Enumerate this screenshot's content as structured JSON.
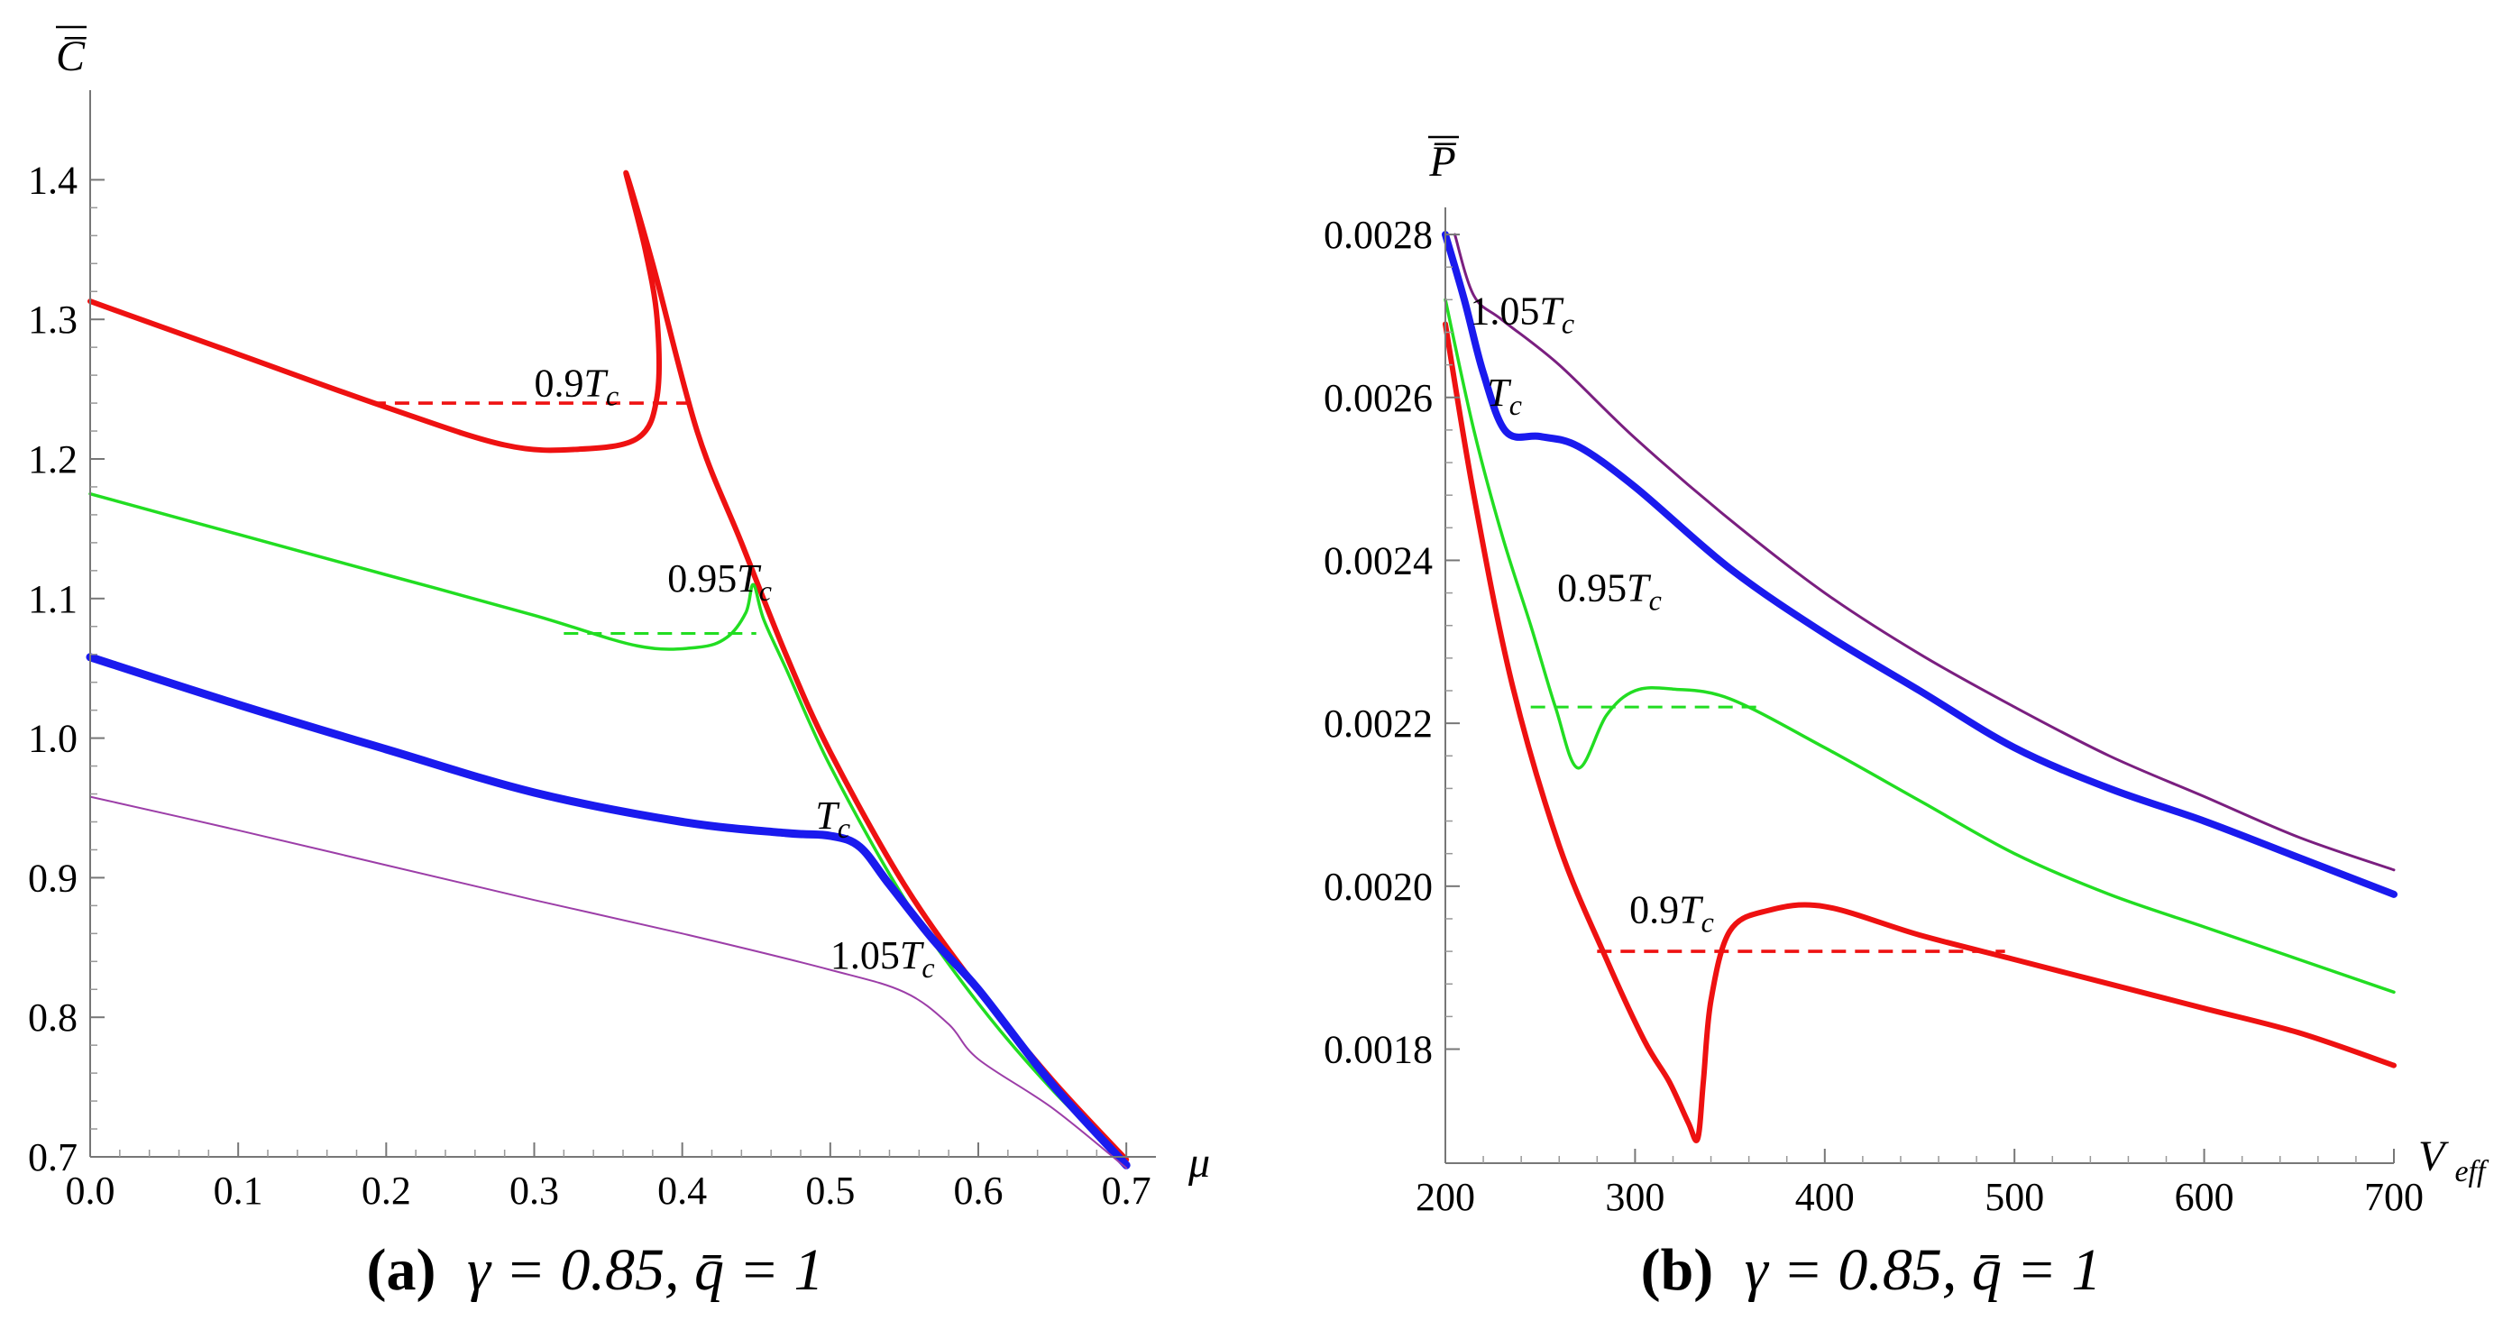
{
  "chart_data": [
    {
      "type": "line",
      "panel": "(a)",
      "caption": {
        "tag": "(a)",
        "text": "γ = 0.85, q̄ = 1"
      },
      "xlabel": "μ",
      "ylabel": "C̅",
      "xlim": [
        0.0,
        0.72
      ],
      "ylim": [
        0.7,
        1.45
      ],
      "xticks": [
        0.0,
        0.1,
        0.2,
        0.3,
        0.4,
        0.5,
        0.6,
        0.7
      ],
      "xtick_labels": [
        "0.0",
        "0.1",
        "0.2",
        "0.3",
        "0.4",
        "0.5",
        "0.6",
        "0.7"
      ],
      "yticks": [
        0.7,
        0.8,
        0.9,
        1.0,
        1.1,
        1.2,
        1.3,
        1.4
      ],
      "ytick_labels": [
        "0.7",
        "0.8",
        "0.9",
        "1.0",
        "1.1",
        "1.2",
        "1.3",
        "1.4"
      ],
      "series": [
        {
          "name": "0.9Tc",
          "label_main": "0.9",
          "label_sub": "c",
          "label_at": [
            0.3,
            1.245
          ],
          "color": "#ee1111",
          "width": 6,
          "points": [
            [
              0,
              1.313
            ],
            [
              0.1,
              1.275
            ],
            [
              0.2,
              1.237
            ],
            [
              0.28,
              1.21
            ],
            [
              0.33,
              1.207
            ],
            [
              0.37,
              1.215
            ],
            [
              0.383,
              1.245
            ],
            [
              0.383,
              1.3
            ],
            [
              0.375,
              1.35
            ],
            [
              0.362,
              1.405
            ],
            [
              0.38,
              1.34
            ],
            [
              0.41,
              1.22
            ],
            [
              0.44,
              1.14
            ],
            [
              0.47,
              1.06
            ],
            [
              0.5,
              0.99
            ],
            [
              0.55,
              0.895
            ],
            [
              0.6,
              0.82
            ],
            [
              0.65,
              0.755
            ],
            [
              0.7,
              0.698
            ]
          ],
          "maxwell": {
            "x": [
              0.19,
              0.406
            ],
            "y": 1.24
          }
        },
        {
          "name": "0.95Tc",
          "label_main": "0.95",
          "label_sub": "c",
          "label_at": [
            0.39,
            1.105
          ],
          "color": "#22dd22",
          "width": 3.5,
          "points": [
            [
              0,
              1.175
            ],
            [
              0.1,
              1.146
            ],
            [
              0.2,
              1.117
            ],
            [
              0.3,
              1.088
            ],
            [
              0.37,
              1.066
            ],
            [
              0.41,
              1.065
            ],
            [
              0.43,
              1.072
            ],
            [
              0.443,
              1.09
            ],
            [
              0.448,
              1.11
            ],
            [
              0.455,
              1.085
            ],
            [
              0.47,
              1.05
            ],
            [
              0.5,
              0.98
            ],
            [
              0.55,
              0.885
            ],
            [
              0.6,
              0.81
            ],
            [
              0.65,
              0.748
            ],
            [
              0.7,
              0.696
            ]
          ],
          "maxwell": {
            "x": [
              0.32,
              0.45
            ],
            "y": 1.075
          }
        },
        {
          "name": "Tc",
          "label_main": "",
          "label_sub": "c",
          "label_at": [
            0.49,
            0.935
          ],
          "color": "#1a1aee",
          "width": 9,
          "points": [
            [
              0,
              1.058
            ],
            [
              0.1,
              1.024
            ],
            [
              0.2,
              0.992
            ],
            [
              0.3,
              0.961
            ],
            [
              0.4,
              0.94
            ],
            [
              0.47,
              0.932
            ],
            [
              0.5,
              0.93
            ],
            [
              0.52,
              0.922
            ],
            [
              0.54,
              0.895
            ],
            [
              0.57,
              0.855
            ],
            [
              0.6,
              0.82
            ],
            [
              0.65,
              0.752
            ],
            [
              0.7,
              0.694
            ]
          ]
        },
        {
          "name": "1.05Tc",
          "label_main": "1.05",
          "label_sub": "c",
          "label_at": [
            0.5,
            0.835
          ],
          "color": "#9c3ea8",
          "width": 2,
          "points": [
            [
              0,
              0.958
            ],
            [
              0.1,
              0.934
            ],
            [
              0.2,
              0.909
            ],
            [
              0.3,
              0.884
            ],
            [
              0.4,
              0.86
            ],
            [
              0.5,
              0.834
            ],
            [
              0.55,
              0.818
            ],
            [
              0.58,
              0.795
            ],
            [
              0.6,
              0.77
            ],
            [
              0.65,
              0.735
            ],
            [
              0.7,
              0.692
            ]
          ]
        }
      ]
    },
    {
      "type": "line",
      "panel": "(b)",
      "caption": {
        "tag": "(b)",
        "text": "γ = 0.85, q̄ = 1"
      },
      "xlabel": "V",
      "xlabel_sub": "eff",
      "ylabel": "P̅",
      "xlim": [
        200,
        700
      ],
      "ylim": [
        0.00166,
        0.00282
      ],
      "xticks": [
        200,
        300,
        400,
        500,
        600,
        700
      ],
      "xtick_labels": [
        "200",
        "300",
        "400",
        "500",
        "600",
        "700"
      ],
      "yticks": [
        0.0018,
        0.002,
        0.0022,
        0.0024,
        0.0026,
        0.0028
      ],
      "ytick_labels": [
        "0.0018",
        "0.0020",
        "0.0022",
        "0.0024",
        "0.0026",
        "0.0028"
      ],
      "series": [
        {
          "name": "1.05Tc",
          "label_main": "1.05",
          "label_sub": "c",
          "label_at": [
            213,
            0.00269
          ],
          "color": "#7a1f80",
          "width": 3,
          "points": [
            [
              205,
              0.0028
            ],
            [
              215,
              0.002725
            ],
            [
              230,
              0.002695
            ],
            [
              260,
              0.00264
            ],
            [
              300,
              0.00255
            ],
            [
              350,
              0.00245
            ],
            [
              400,
              0.00236
            ],
            [
              450,
              0.002285
            ],
            [
              500,
              0.00222
            ],
            [
              550,
              0.00216
            ],
            [
              600,
              0.00211
            ],
            [
              650,
              0.00206
            ],
            [
              700,
              0.00202
            ]
          ]
        },
        {
          "name": "Tc",
          "label_main": "",
          "label_sub": "c",
          "label_at": [
            222,
            0.00259
          ],
          "color": "#1a1aee",
          "width": 8,
          "points": [
            [
              200,
              0.0028
            ],
            [
              210,
              0.00272
            ],
            [
              220,
              0.00263
            ],
            [
              232,
              0.002558
            ],
            [
              250,
              0.002552
            ],
            [
              270,
              0.00254
            ],
            [
              300,
              0.00249
            ],
            [
              350,
              0.00239
            ],
            [
              400,
              0.00231
            ],
            [
              450,
              0.00224
            ],
            [
              500,
              0.00217
            ],
            [
              550,
              0.00212
            ],
            [
              600,
              0.00208
            ],
            [
              650,
              0.002035
            ],
            [
              700,
              0.00199
            ]
          ]
        },
        {
          "name": "0.95Tc",
          "label_main": "0.95",
          "label_sub": "c",
          "label_at": [
            259,
            0.00235
          ],
          "color": "#22dd22",
          "width": 3.5,
          "points": [
            [
              200,
              0.00272
            ],
            [
              215,
              0.00256
            ],
            [
              230,
              0.00243
            ],
            [
              245,
              0.00232
            ],
            [
              258,
              0.00222
            ],
            [
              270,
              0.002145
            ],
            [
              285,
              0.00221
            ],
            [
              300,
              0.00224
            ],
            [
              320,
              0.002242
            ],
            [
              350,
              0.00223
            ],
            [
              400,
              0.00217
            ],
            [
              450,
              0.002105
            ],
            [
              500,
              0.00204
            ],
            [
              550,
              0.00199
            ],
            [
              600,
              0.00195
            ],
            [
              650,
              0.00191
            ],
            [
              700,
              0.00187
            ]
          ],
          "maxwell": {
            "x": [
              245,
              368
            ],
            "y": 0.00222
          }
        },
        {
          "name": "0.9Tc",
          "label_main": "0.9",
          "label_sub": "c",
          "label_at": [
            297,
            0.001955
          ],
          "color": "#ee1111",
          "width": 6,
          "points": [
            [
              200,
              0.00269
            ],
            [
              215,
              0.00248
            ],
            [
              235,
              0.00225
            ],
            [
              260,
              0.00205
            ],
            [
              285,
              0.00191
            ],
            [
              305,
              0.00181
            ],
            [
              318,
              0.00176
            ],
            [
              328,
              0.00171
            ],
            [
              333,
              0.00169
            ],
            [
              336,
              0.00176
            ],
            [
              340,
              0.00186
            ],
            [
              350,
              0.001945
            ],
            [
              370,
              0.00197
            ],
            [
              400,
              0.001975
            ],
            [
              450,
              0.00194
            ],
            [
              500,
              0.00191
            ],
            [
              550,
              0.00188
            ],
            [
              600,
              0.00185
            ],
            [
              650,
              0.00182
            ],
            [
              700,
              0.00178
            ]
          ],
          "maxwell": {
            "x": [
              280,
              495
            ],
            "y": 0.00192
          }
        }
      ]
    }
  ]
}
